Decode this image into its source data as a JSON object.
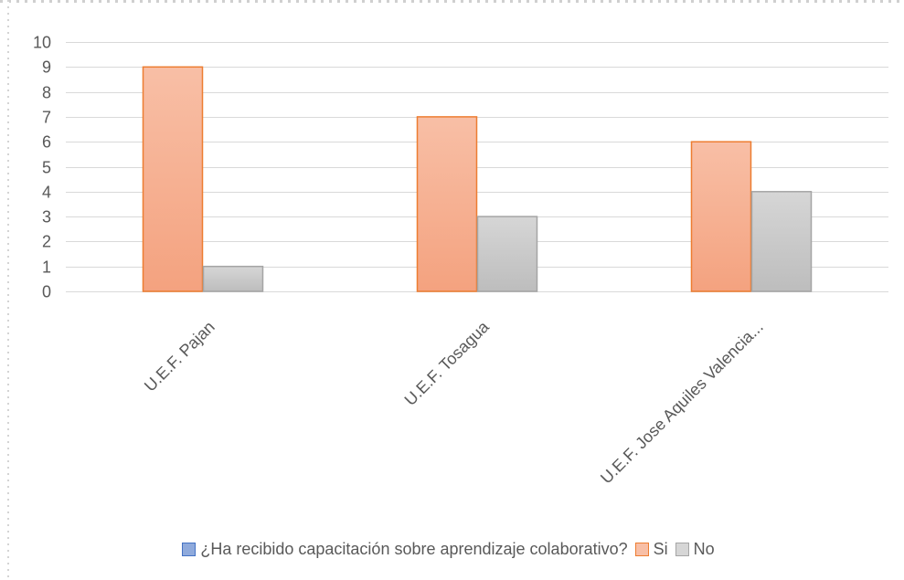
{
  "chart_data": {
    "type": "bar",
    "title": "",
    "xlabel": "",
    "ylabel": "",
    "categories": [
      "U.E.F. Pajan",
      "U.E.F. Tosagua",
      "U.E.F. Jose Aquiles Valencia..."
    ],
    "series": [
      {
        "name": "¿Ha recibido capacitación sobre aprendizaje colaborativo?",
        "values": [
          0,
          0,
          0
        ],
        "color": "#4472C4"
      },
      {
        "name": "Si",
        "values": [
          9,
          7,
          6
        ],
        "color": "#F4A582"
      },
      {
        "name": "No",
        "values": [
          1,
          3,
          4
        ],
        "color": "#BFBFBF"
      }
    ],
    "ylim": [
      0,
      10
    ],
    "yticks": [
      0,
      1,
      2,
      3,
      4,
      5,
      6,
      7,
      8,
      9,
      10
    ],
    "grid": true,
    "legend_position": "bottom"
  },
  "colors": {
    "si_fill_top": "#F8BFA6",
    "si_fill_bottom": "#F4A27F",
    "si_border": "#ED7D31",
    "no_fill_top": "#D6D6D6",
    "no_fill_bottom": "#BDBDBD",
    "no_border": "#A5A5A5",
    "series1_fill": "#8FAADC",
    "series1_border": "#4472C4",
    "gridline": "#D9D9D9",
    "text": "#595959"
  }
}
